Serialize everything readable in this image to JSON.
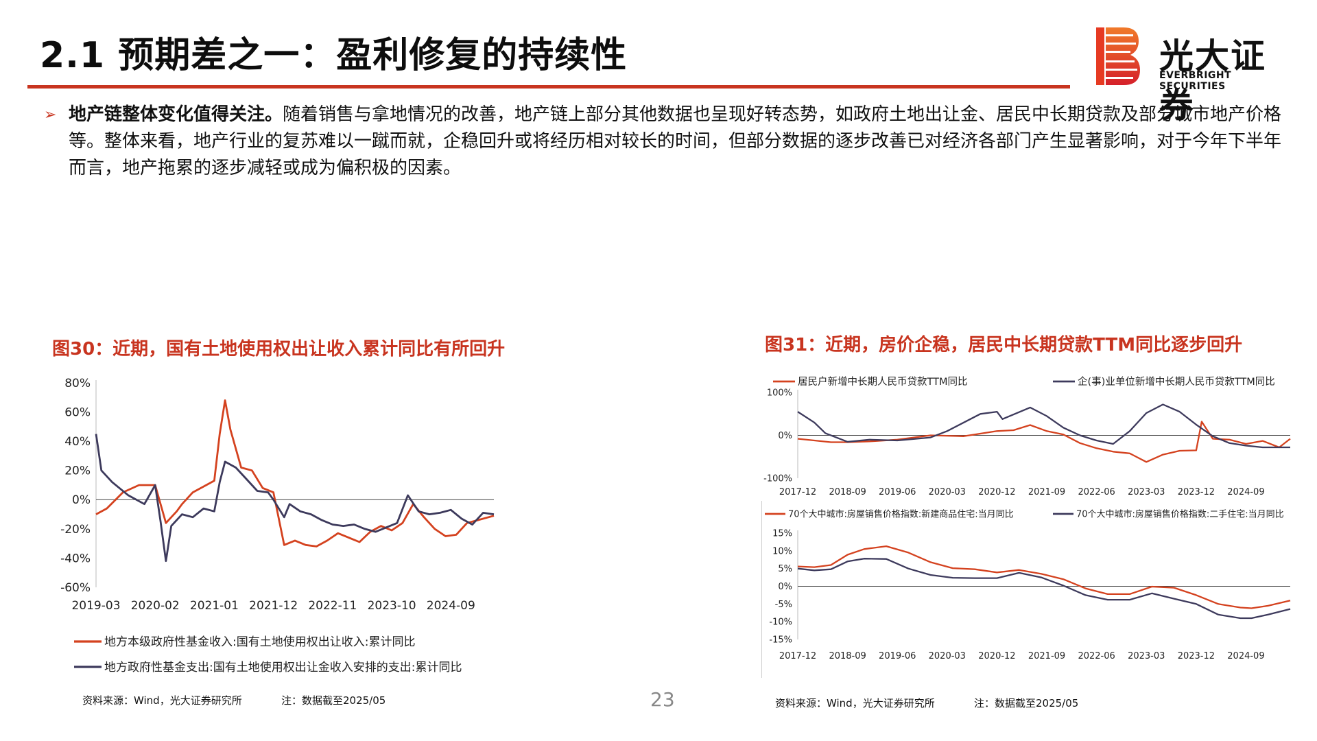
{
  "header": {
    "title": "2.1 预期差之一：盈利修复的持续性"
  },
  "logo": {
    "cn": "光大证券",
    "en": "EVERBRIGHT SECURITIES"
  },
  "bullet": {
    "lead": "地产链整体变化值得关注。",
    "body": "随着销售与拿地情况的改善，地产链上部分其他数据也呈现好转态势，如政府土地出让金、居民中长期贷款及部分城市地产价格等。整体来看，地产行业的复苏难以一蹴而就，企稳回升或将经历相对较长的时间，但部分数据的逐步改善已对经济各部门产生显著影响，对于今年下半年而言，地产拖累的逐步减轻或成为偏积极的因素。"
  },
  "figures": {
    "fig30": {
      "title": "图30：近期，国有土地使用权出让收入累计同比有所回升",
      "source": "资料来源：Wind，光大证券研究所",
      "note": "注：数据截至2025/05"
    },
    "fig31": {
      "title": "图31：近期，房价企稳，居民中长期贷款TTM同比逐步回升",
      "source": "资料来源：Wind，光大证券研究所",
      "note": "注：数据截至2025/05"
    }
  },
  "page_number": "23",
  "colors": {
    "accent": "#c8341f",
    "series_red": "#d4421f",
    "series_navy": "#3d3a5c"
  },
  "chart_data": [
    {
      "type": "line",
      "ylim": [
        -60,
        80
      ],
      "yticks": [
        -60,
        -40,
        -20,
        0,
        20,
        40,
        60,
        80
      ],
      "ytick_labels": [
        "-60%",
        "-40%",
        "-20%",
        "0%",
        "20%",
        "40%",
        "60%",
        "80%"
      ],
      "xlim": [
        "2019-03",
        "2025-05"
      ],
      "xtick_labels": [
        "2019-03",
        "2020-02",
        "2021-01",
        "2021-12",
        "2022-11",
        "2023-10",
        "2024-09"
      ],
      "series": [
        {
          "name": "地方本级政府性基金收入:国有土地使用权出让收入:累计同比",
          "color": "#d4421f",
          "x": [
            "2019-03",
            "2019-05",
            "2019-08",
            "2019-11",
            "2020-02",
            "2020-04",
            "2020-06",
            "2020-07",
            "2020-09",
            "2020-11",
            "2021-01",
            "2021-02",
            "2021-03",
            "2021-04",
            "2021-06",
            "2021-08",
            "2021-10",
            "2021-12",
            "2022-02",
            "2022-04",
            "2022-06",
            "2022-08",
            "2022-10",
            "2022-12",
            "2023-02",
            "2023-04",
            "2023-06",
            "2023-08",
            "2023-10",
            "2023-12",
            "2024-02",
            "2024-04",
            "2024-06",
            "2024-08",
            "2024-10",
            "2024-12",
            "2025-02",
            "2025-05"
          ],
          "values": [
            -10,
            -6,
            5,
            10,
            10,
            -16,
            -8,
            -3,
            5,
            9,
            13,
            45,
            68,
            48,
            22,
            20,
            8,
            5,
            -31,
            -28,
            -31,
            -32,
            -28,
            -23,
            -26,
            -29,
            -22,
            -18,
            -21,
            -16,
            -3,
            -12,
            -20,
            -25,
            -24,
            -16,
            -14,
            -11
          ]
        },
        {
          "name": "地方政府性基金支出:国有土地使用权出让金收入安排的支出:累计同比",
          "color": "#3d3a5c",
          "x": [
            "2019-03",
            "2019-04",
            "2019-06",
            "2019-09",
            "2019-12",
            "2020-02",
            "2020-03",
            "2020-04",
            "2020-05",
            "2020-07",
            "2020-09",
            "2020-11",
            "2021-01",
            "2021-02",
            "2021-03",
            "2021-05",
            "2021-07",
            "2021-09",
            "2021-11",
            "2021-12",
            "2022-02",
            "2022-03",
            "2022-05",
            "2022-07",
            "2022-09",
            "2022-11",
            "2023-01",
            "2023-03",
            "2023-05",
            "2023-07",
            "2023-09",
            "2023-11",
            "2024-01",
            "2024-03",
            "2024-05",
            "2024-07",
            "2024-09",
            "2024-11",
            "2025-01",
            "2025-03",
            "2025-05"
          ],
          "values": [
            45,
            20,
            12,
            3,
            -3,
            10,
            -15,
            -42,
            -18,
            -10,
            -12,
            -6,
            -8,
            12,
            26,
            22,
            14,
            6,
            5,
            0,
            -12,
            -3,
            -8,
            -10,
            -14,
            -17,
            -18,
            -17,
            -20,
            -22,
            -19,
            -16,
            3,
            -8,
            -10,
            -9,
            -7,
            -13,
            -17,
            -9,
            -10
          ]
        }
      ]
    },
    {
      "type": "line",
      "ylim": [
        -100,
        100
      ],
      "yticks": [
        -100,
        0,
        100
      ],
      "ytick_labels": [
        "-100%",
        "0%",
        "100%"
      ],
      "xlim": [
        "2017-12",
        "2025-05"
      ],
      "xtick_labels": [
        "2017-12",
        "2018-09",
        "2019-06",
        "2020-03",
        "2020-12",
        "2021-09",
        "2022-06",
        "2023-03",
        "2023-12",
        "2024-09"
      ],
      "series": [
        {
          "name": "居民户新增中长期人民币贷款TTM同比",
          "color": "#d4421f",
          "x": [
            "2017-12",
            "2018-03",
            "2018-06",
            "2018-09",
            "2019-01",
            "2019-06",
            "2019-12",
            "2020-06",
            "2020-12",
            "2021-03",
            "2021-06",
            "2021-09",
            "2021-12",
            "2022-03",
            "2022-06",
            "2022-09",
            "2022-12",
            "2023-03",
            "2023-06",
            "2023-09",
            "2023-12",
            "2024-01",
            "2024-03",
            "2024-06",
            "2024-09",
            "2024-12",
            "2025-03",
            "2025-05"
          ],
          "values": [
            -8,
            -12,
            -16,
            -16,
            -14,
            -10,
            0,
            -2,
            10,
            12,
            24,
            10,
            2,
            -18,
            -30,
            -38,
            -42,
            -62,
            -45,
            -36,
            -35,
            32,
            -8,
            -10,
            -20,
            -13,
            -28,
            -8
          ]
        },
        {
          "name": "企(事)业单位新增中长期人民币贷款TTM同比",
          "color": "#3d3a5c",
          "x": [
            "2017-12",
            "2018-03",
            "2018-05",
            "2018-09",
            "2019-01",
            "2019-06",
            "2019-12",
            "2020-03",
            "2020-06",
            "2020-09",
            "2020-12",
            "2021-01",
            "2021-06",
            "2021-09",
            "2021-12",
            "2022-03",
            "2022-06",
            "2022-09",
            "2022-12",
            "2023-03",
            "2023-06",
            "2023-09",
            "2023-12",
            "2024-03",
            "2024-06",
            "2024-09",
            "2024-12",
            "2025-03",
            "2025-05"
          ],
          "values": [
            55,
            30,
            5,
            -15,
            -10,
            -12,
            -5,
            10,
            30,
            50,
            55,
            38,
            65,
            45,
            18,
            0,
            -12,
            -20,
            10,
            52,
            72,
            55,
            25,
            -2,
            -18,
            -24,
            -28,
            -28,
            -28
          ]
        }
      ]
    },
    {
      "type": "line",
      "ylim": [
        -15,
        15
      ],
      "yticks": [
        -15,
        -10,
        -5,
        0,
        5,
        10,
        15
      ],
      "ytick_labels": [
        "-15%",
        "-10%",
        "-5%",
        "0%",
        "5%",
        "10%",
        "15%"
      ],
      "xlim": [
        "2017-12",
        "2025-05"
      ],
      "xtick_labels": [
        "2017-12",
        "2018-09",
        "2019-06",
        "2020-03",
        "2020-12",
        "2021-09",
        "2022-06",
        "2023-03",
        "2023-12",
        "2024-09"
      ],
      "series": [
        {
          "name": "70个大中城市:房屋销售价格指数:新建商品住宅:当月同比",
          "color": "#d4421f",
          "x": [
            "2017-12",
            "2018-03",
            "2018-06",
            "2018-09",
            "2018-12",
            "2019-04",
            "2019-08",
            "2019-12",
            "2020-04",
            "2020-08",
            "2020-12",
            "2021-04",
            "2021-08",
            "2021-12",
            "2022-04",
            "2022-08",
            "2022-12",
            "2023-04",
            "2023-08",
            "2023-12",
            "2024-04",
            "2024-08",
            "2024-10",
            "2025-01",
            "2025-05"
          ],
          "values": [
            5.6,
            5.4,
            6.0,
            8.9,
            10.5,
            11.3,
            9.5,
            6.8,
            5.1,
            4.8,
            3.9,
            4.6,
            3.5,
            2.0,
            -0.6,
            -2.2,
            -2.2,
            -0.1,
            -0.4,
            -2.5,
            -5.0,
            -6.0,
            -6.2,
            -5.5,
            -4.0
          ]
        },
        {
          "name": "70个大中城市:房屋销售价格指数:二手住宅:当月同比",
          "color": "#3d3a5c",
          "x": [
            "2017-12",
            "2018-03",
            "2018-06",
            "2018-09",
            "2018-12",
            "2019-04",
            "2019-08",
            "2019-12",
            "2020-04",
            "2020-08",
            "2020-12",
            "2021-04",
            "2021-08",
            "2021-12",
            "2022-04",
            "2022-08",
            "2022-12",
            "2023-04",
            "2023-08",
            "2023-12",
            "2024-04",
            "2024-08",
            "2024-10",
            "2025-01",
            "2025-05"
          ],
          "values": [
            5.0,
            4.5,
            4.8,
            7.0,
            7.8,
            7.7,
            5.0,
            3.2,
            2.4,
            2.3,
            2.3,
            3.8,
            2.5,
            0.2,
            -2.5,
            -3.8,
            -3.8,
            -2.0,
            -3.5,
            -5.0,
            -8.0,
            -9.0,
            -9.0,
            -8.0,
            -6.4
          ]
        }
      ]
    }
  ]
}
